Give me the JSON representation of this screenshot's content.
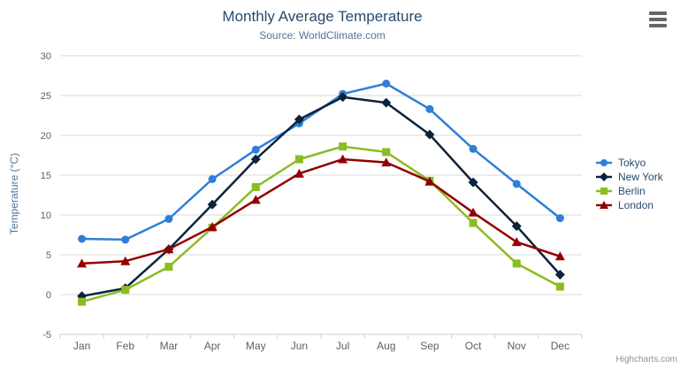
{
  "credits": "Highcharts.com",
  "colors": {
    "title": "#274b6d",
    "subtitle": "#4d759e",
    "axis_title": "#4d759e",
    "axis_label": "#606060",
    "gridline": "#d8d8d8",
    "axis_line": "#c0d0e0",
    "legend_text": "#274b6d",
    "credit": "#909090",
    "menu_icon": "#666666"
  },
  "chart_data": {
    "type": "line",
    "title": "Monthly Average Temperature",
    "subtitle": "Source: WorldClimate.com",
    "xlabel": "",
    "ylabel": "Temperature (°C)",
    "ylim": [
      -5,
      30
    ],
    "y_tick_interval": 5,
    "grid": true,
    "legend_position": "right",
    "categories": [
      "Jan",
      "Feb",
      "Mar",
      "Apr",
      "May",
      "Jun",
      "Jul",
      "Aug",
      "Sep",
      "Oct",
      "Nov",
      "Dec"
    ],
    "series": [
      {
        "name": "Tokyo",
        "color": "#2f7ed8",
        "marker": "circle",
        "values": [
          7.0,
          6.9,
          9.5,
          14.5,
          18.2,
          21.5,
          25.2,
          26.5,
          23.3,
          18.3,
          13.9,
          9.6
        ]
      },
      {
        "name": "New York",
        "color": "#0d233a",
        "marker": "diamond",
        "values": [
          -0.2,
          0.8,
          5.7,
          11.3,
          17.0,
          22.0,
          24.8,
          24.1,
          20.1,
          14.1,
          8.6,
          2.5
        ]
      },
      {
        "name": "Berlin",
        "color": "#8bbc21",
        "marker": "square",
        "values": [
          -0.9,
          0.6,
          3.5,
          8.4,
          13.5,
          17.0,
          18.6,
          17.9,
          14.3,
          9.0,
          3.9,
          1.0
        ]
      },
      {
        "name": "London",
        "color": "#910000",
        "marker": "triangle",
        "values": [
          3.9,
          4.2,
          5.7,
          8.5,
          11.9,
          15.2,
          17.0,
          16.6,
          14.2,
          10.3,
          6.6,
          4.8
        ]
      }
    ]
  }
}
